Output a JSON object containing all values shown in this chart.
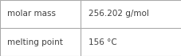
{
  "rows": [
    {
      "label": "molar mass",
      "value": "256.202 g/mol"
    },
    {
      "label": "melting point",
      "value": "156 °C"
    }
  ],
  "background_color": "#ffffff",
  "border_color": "#aaaaaa",
  "text_color": "#404040",
  "font_size": 7.5,
  "col_split": 0.445
}
